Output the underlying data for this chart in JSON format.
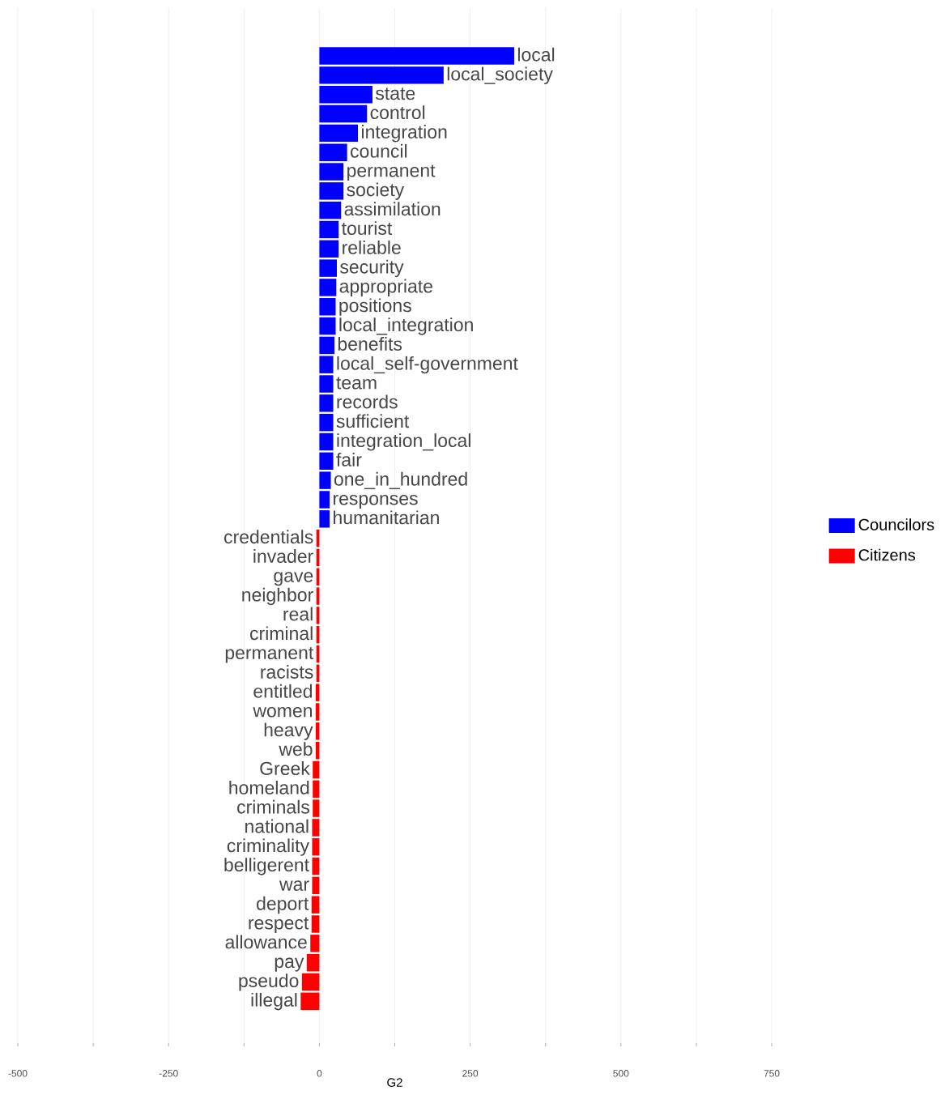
{
  "chart_data": {
    "type": "bar",
    "orientation": "horizontal",
    "xlabel": "G2",
    "categories": [
      "local",
      "local_society",
      "state",
      "control",
      "integration",
      "council",
      "permanent",
      "society",
      "assimilation",
      "tourist",
      "reliable",
      "security",
      "appropriate",
      "positions",
      "local_integration",
      "benefits",
      "local_self-government",
      "team",
      "records",
      "sufficient",
      "integration_local",
      "fair",
      "one_in_hundred",
      "responses",
      "humanitarian",
      "credentials",
      "invader",
      "gave",
      "neighbor",
      "real",
      "criminal",
      "permanent",
      "racists",
      "entitled",
      "women",
      "heavy",
      "web",
      "Greek",
      "homeland",
      "criminals",
      "national",
      "criminality",
      "belligerent",
      "war",
      "deport",
      "respect",
      "allowance",
      "pay",
      "pseudo",
      "illegal"
    ],
    "series": [
      {
        "name": "Councilors",
        "color": "#0000ff",
        "values": [
          323,
          206,
          88,
          79,
          64,
          46,
          40,
          40,
          36,
          32,
          32,
          29,
          28,
          27,
          27,
          25,
          23,
          23,
          23,
          23,
          23,
          23,
          19,
          17,
          17,
          null,
          null,
          null,
          null,
          null,
          null,
          null,
          null,
          null,
          null,
          null,
          null,
          null,
          null,
          null,
          null,
          null,
          null,
          null,
          null,
          null,
          null,
          null,
          null,
          null
        ]
      },
      {
        "name": "Citizens",
        "color": "#ff0000",
        "values": [
          null,
          null,
          null,
          null,
          null,
          null,
          null,
          null,
          null,
          null,
          null,
          null,
          null,
          null,
          null,
          null,
          null,
          null,
          null,
          null,
          null,
          null,
          null,
          null,
          null,
          -5,
          -5,
          -5,
          -5,
          -5,
          -5,
          -5,
          -5,
          -6,
          -6,
          -6,
          -6,
          -11,
          -11,
          -11,
          -12,
          -12,
          -12,
          -12,
          -13,
          -13,
          -15,
          -21,
          -29,
          -31
        ]
      }
    ],
    "xlim": [
      -500,
      750
    ],
    "xticks": [
      -500,
      {
        "value": -375,
        "label": null
      },
      -250,
      {
        "value": -125,
        "label": null
      },
      0,
      {
        "value": 125,
        "label": null
      },
      250,
      {
        "value": 375,
        "label": null
      },
      500,
      {
        "value": 625,
        "label": null
      },
      750
    ],
    "grid": "x",
    "legend": "right"
  }
}
